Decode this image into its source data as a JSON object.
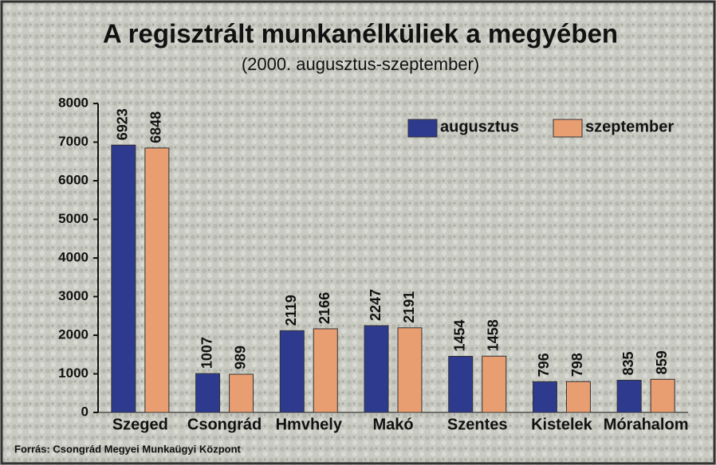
{
  "chart_data": {
    "type": "bar",
    "title": "A regisztrált munkanélküliek a megyében",
    "subtitle": "(2000. augusztus-szeptember)",
    "source": "Forrás: Csongrád Megyei Munkaügyi Központ",
    "categories": [
      "Szeged",
      "Csongrád",
      "Hmvhely",
      "Makó",
      "Szentes",
      "Kistelek",
      "Mórahalom"
    ],
    "series": [
      {
        "name": "augusztus",
        "color": "#2d3a8e",
        "values": [
          6923,
          1007,
          2119,
          2247,
          1454,
          796,
          835
        ]
      },
      {
        "name": "szeptember",
        "color": "#e99e72",
        "values": [
          6848,
          989,
          2166,
          2191,
          1458,
          798,
          859
        ]
      }
    ],
    "ylim": [
      0,
      8000
    ],
    "yticks": [
      0,
      1000,
      2000,
      3000,
      4000,
      5000,
      6000,
      7000,
      8000
    ],
    "grid": false,
    "legend": "top-right",
    "data_labels": true
  }
}
